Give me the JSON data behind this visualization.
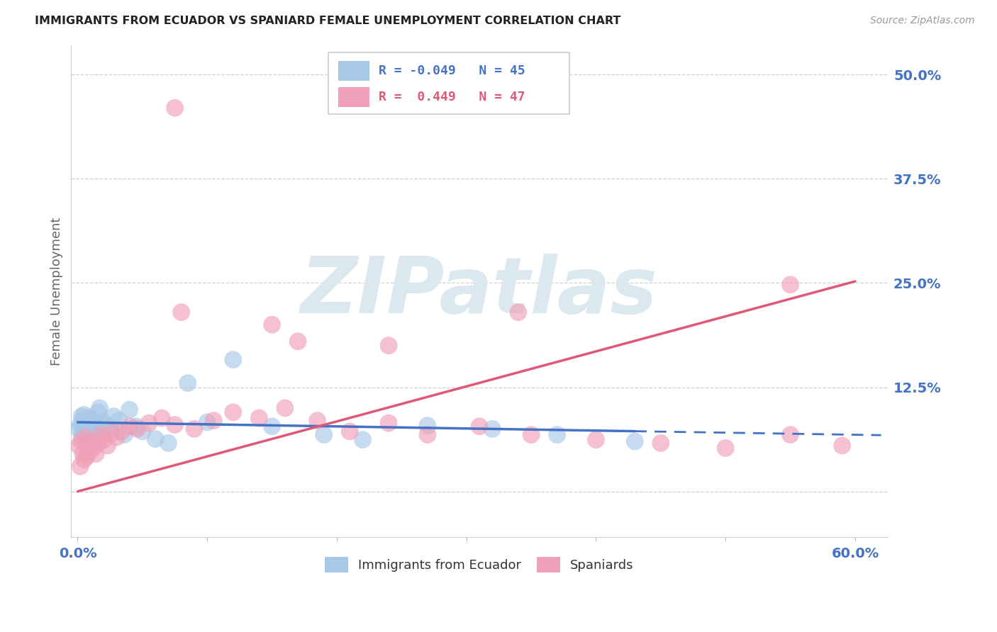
{
  "title": "IMMIGRANTS FROM ECUADOR VS SPANIARD FEMALE UNEMPLOYMENT CORRELATION CHART",
  "source": "Source: ZipAtlas.com",
  "ylabel": "Female Unemployment",
  "xlim": [
    -0.005,
    0.625
  ],
  "ylim": [
    -0.055,
    0.535
  ],
  "yticks": [
    0.0,
    0.125,
    0.25,
    0.375,
    0.5
  ],
  "ytick_labels": [
    "",
    "12.5%",
    "25.0%",
    "37.5%",
    "50.0%"
  ],
  "xtick_positions": [
    0.0,
    0.1,
    0.2,
    0.3,
    0.4,
    0.5,
    0.6
  ],
  "xtick_labels": [
    "0.0%",
    "",
    "",
    "",
    "",
    "",
    "60.0%"
  ],
  "grid_color": "#d0d0d0",
  "background_color": "#ffffff",
  "blue_color": "#a8c8e8",
  "pink_color": "#f0a0b8",
  "blue_line_color": "#4472c4",
  "pink_line_color": "#e05878",
  "axis_label_color": "#4472c4",
  "watermark_text": "ZIPatlas",
  "ecuador_x": [
    0.001,
    0.002,
    0.003,
    0.003,
    0.004,
    0.004,
    0.005,
    0.005,
    0.006,
    0.006,
    0.007,
    0.007,
    0.008,
    0.009,
    0.01,
    0.01,
    0.011,
    0.012,
    0.013,
    0.014,
    0.015,
    0.016,
    0.017,
    0.018,
    0.02,
    0.022,
    0.025,
    0.028,
    0.032,
    0.036,
    0.04,
    0.045,
    0.05,
    0.06,
    0.07,
    0.085,
    0.1,
    0.12,
    0.15,
    0.19,
    0.22,
    0.27,
    0.32,
    0.37,
    0.43
  ],
  "ecuador_y": [
    0.075,
    0.08,
    0.065,
    0.09,
    0.072,
    0.085,
    0.078,
    0.092,
    0.08,
    0.068,
    0.082,
    0.076,
    0.074,
    0.088,
    0.07,
    0.083,
    0.079,
    0.086,
    0.073,
    0.077,
    0.082,
    0.095,
    0.1,
    0.07,
    0.083,
    0.078,
    0.075,
    0.09,
    0.085,
    0.068,
    0.098,
    0.078,
    0.072,
    0.063,
    0.058,
    0.13,
    0.083,
    0.158,
    0.078,
    0.068,
    0.062,
    0.079,
    0.075,
    0.068,
    0.06
  ],
  "spaniard_x": [
    0.001,
    0.002,
    0.003,
    0.004,
    0.005,
    0.006,
    0.007,
    0.008,
    0.009,
    0.01,
    0.012,
    0.014,
    0.016,
    0.018,
    0.02,
    0.023,
    0.026,
    0.03,
    0.034,
    0.04,
    0.046,
    0.055,
    0.065,
    0.075,
    0.09,
    0.105,
    0.12,
    0.14,
    0.16,
    0.185,
    0.21,
    0.24,
    0.27,
    0.31,
    0.35,
    0.4,
    0.45,
    0.5,
    0.55,
    0.59,
    0.08,
    0.15,
    0.17,
    0.24,
    0.34,
    0.55,
    0.075
  ],
  "spaniard_y": [
    0.055,
    0.03,
    0.06,
    0.045,
    0.038,
    0.065,
    0.042,
    0.055,
    0.048,
    0.06,
    0.052,
    0.045,
    0.058,
    0.068,
    0.062,
    0.055,
    0.07,
    0.065,
    0.072,
    0.078,
    0.075,
    0.082,
    0.088,
    0.08,
    0.075,
    0.085,
    0.095,
    0.088,
    0.1,
    0.085,
    0.072,
    0.082,
    0.068,
    0.078,
    0.068,
    0.062,
    0.058,
    0.052,
    0.068,
    0.055,
    0.215,
    0.2,
    0.18,
    0.175,
    0.215,
    0.248,
    0.46
  ],
  "eq_line_x0": 0.0,
  "eq_line_x1": 0.43,
  "eq_line_x2": 0.62,
  "eq_line_y_intercept": 0.083,
  "eq_line_slope": -0.025,
  "sp_line_x0": 0.0,
  "sp_line_x1": 0.6,
  "sp_line_y_intercept": 0.0,
  "sp_line_slope": 0.42
}
